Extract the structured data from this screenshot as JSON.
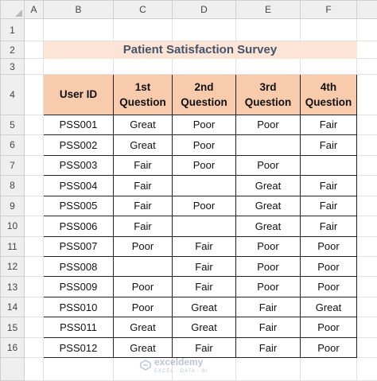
{
  "columns": [
    "A",
    "B",
    "C",
    "D",
    "E",
    "F"
  ],
  "rows": [
    "1",
    "2",
    "3",
    "4",
    "5",
    "6",
    "7",
    "8",
    "9",
    "10",
    "11",
    "12",
    "13",
    "14",
    "15",
    "16"
  ],
  "title": "Patient Satisfaction Survey",
  "table": {
    "headers": [
      "User ID",
      "1st Question",
      "2nd Question",
      "3rd Question",
      "4th Question"
    ],
    "records": [
      [
        "PSS001",
        "Great",
        "Poor",
        "Poor",
        "Fair"
      ],
      [
        "PSS002",
        "Great",
        "Poor",
        "",
        "Fair"
      ],
      [
        "PSS003",
        "Fair",
        "Poor",
        "Poor",
        ""
      ],
      [
        "PSS004",
        "Fair",
        "",
        "Great",
        "Fair"
      ],
      [
        "PSS005",
        "Fair",
        "Poor",
        "Great",
        "Fair"
      ],
      [
        "PSS006",
        "Fair",
        "",
        "Great",
        "Fair"
      ],
      [
        "PSS007",
        "Poor",
        "Fair",
        "Poor",
        "Poor"
      ],
      [
        "PSS008",
        "",
        "Fair",
        "Poor",
        "Poor"
      ],
      [
        "PSS009",
        "Poor",
        "Fair",
        "Poor",
        "Poor"
      ],
      [
        "PSS010",
        "Poor",
        "Great",
        "Fair",
        "Great"
      ],
      [
        "PSS011",
        "Great",
        "Great",
        "Fair",
        "Poor"
      ],
      [
        "PSS012",
        "Great",
        "Fair",
        "Fair",
        "Poor"
      ]
    ]
  },
  "watermark": {
    "name": "exceldemy",
    "tagline": "EXCEL · DATA · BI",
    "icon": "exceldemy-logo-icon"
  }
}
